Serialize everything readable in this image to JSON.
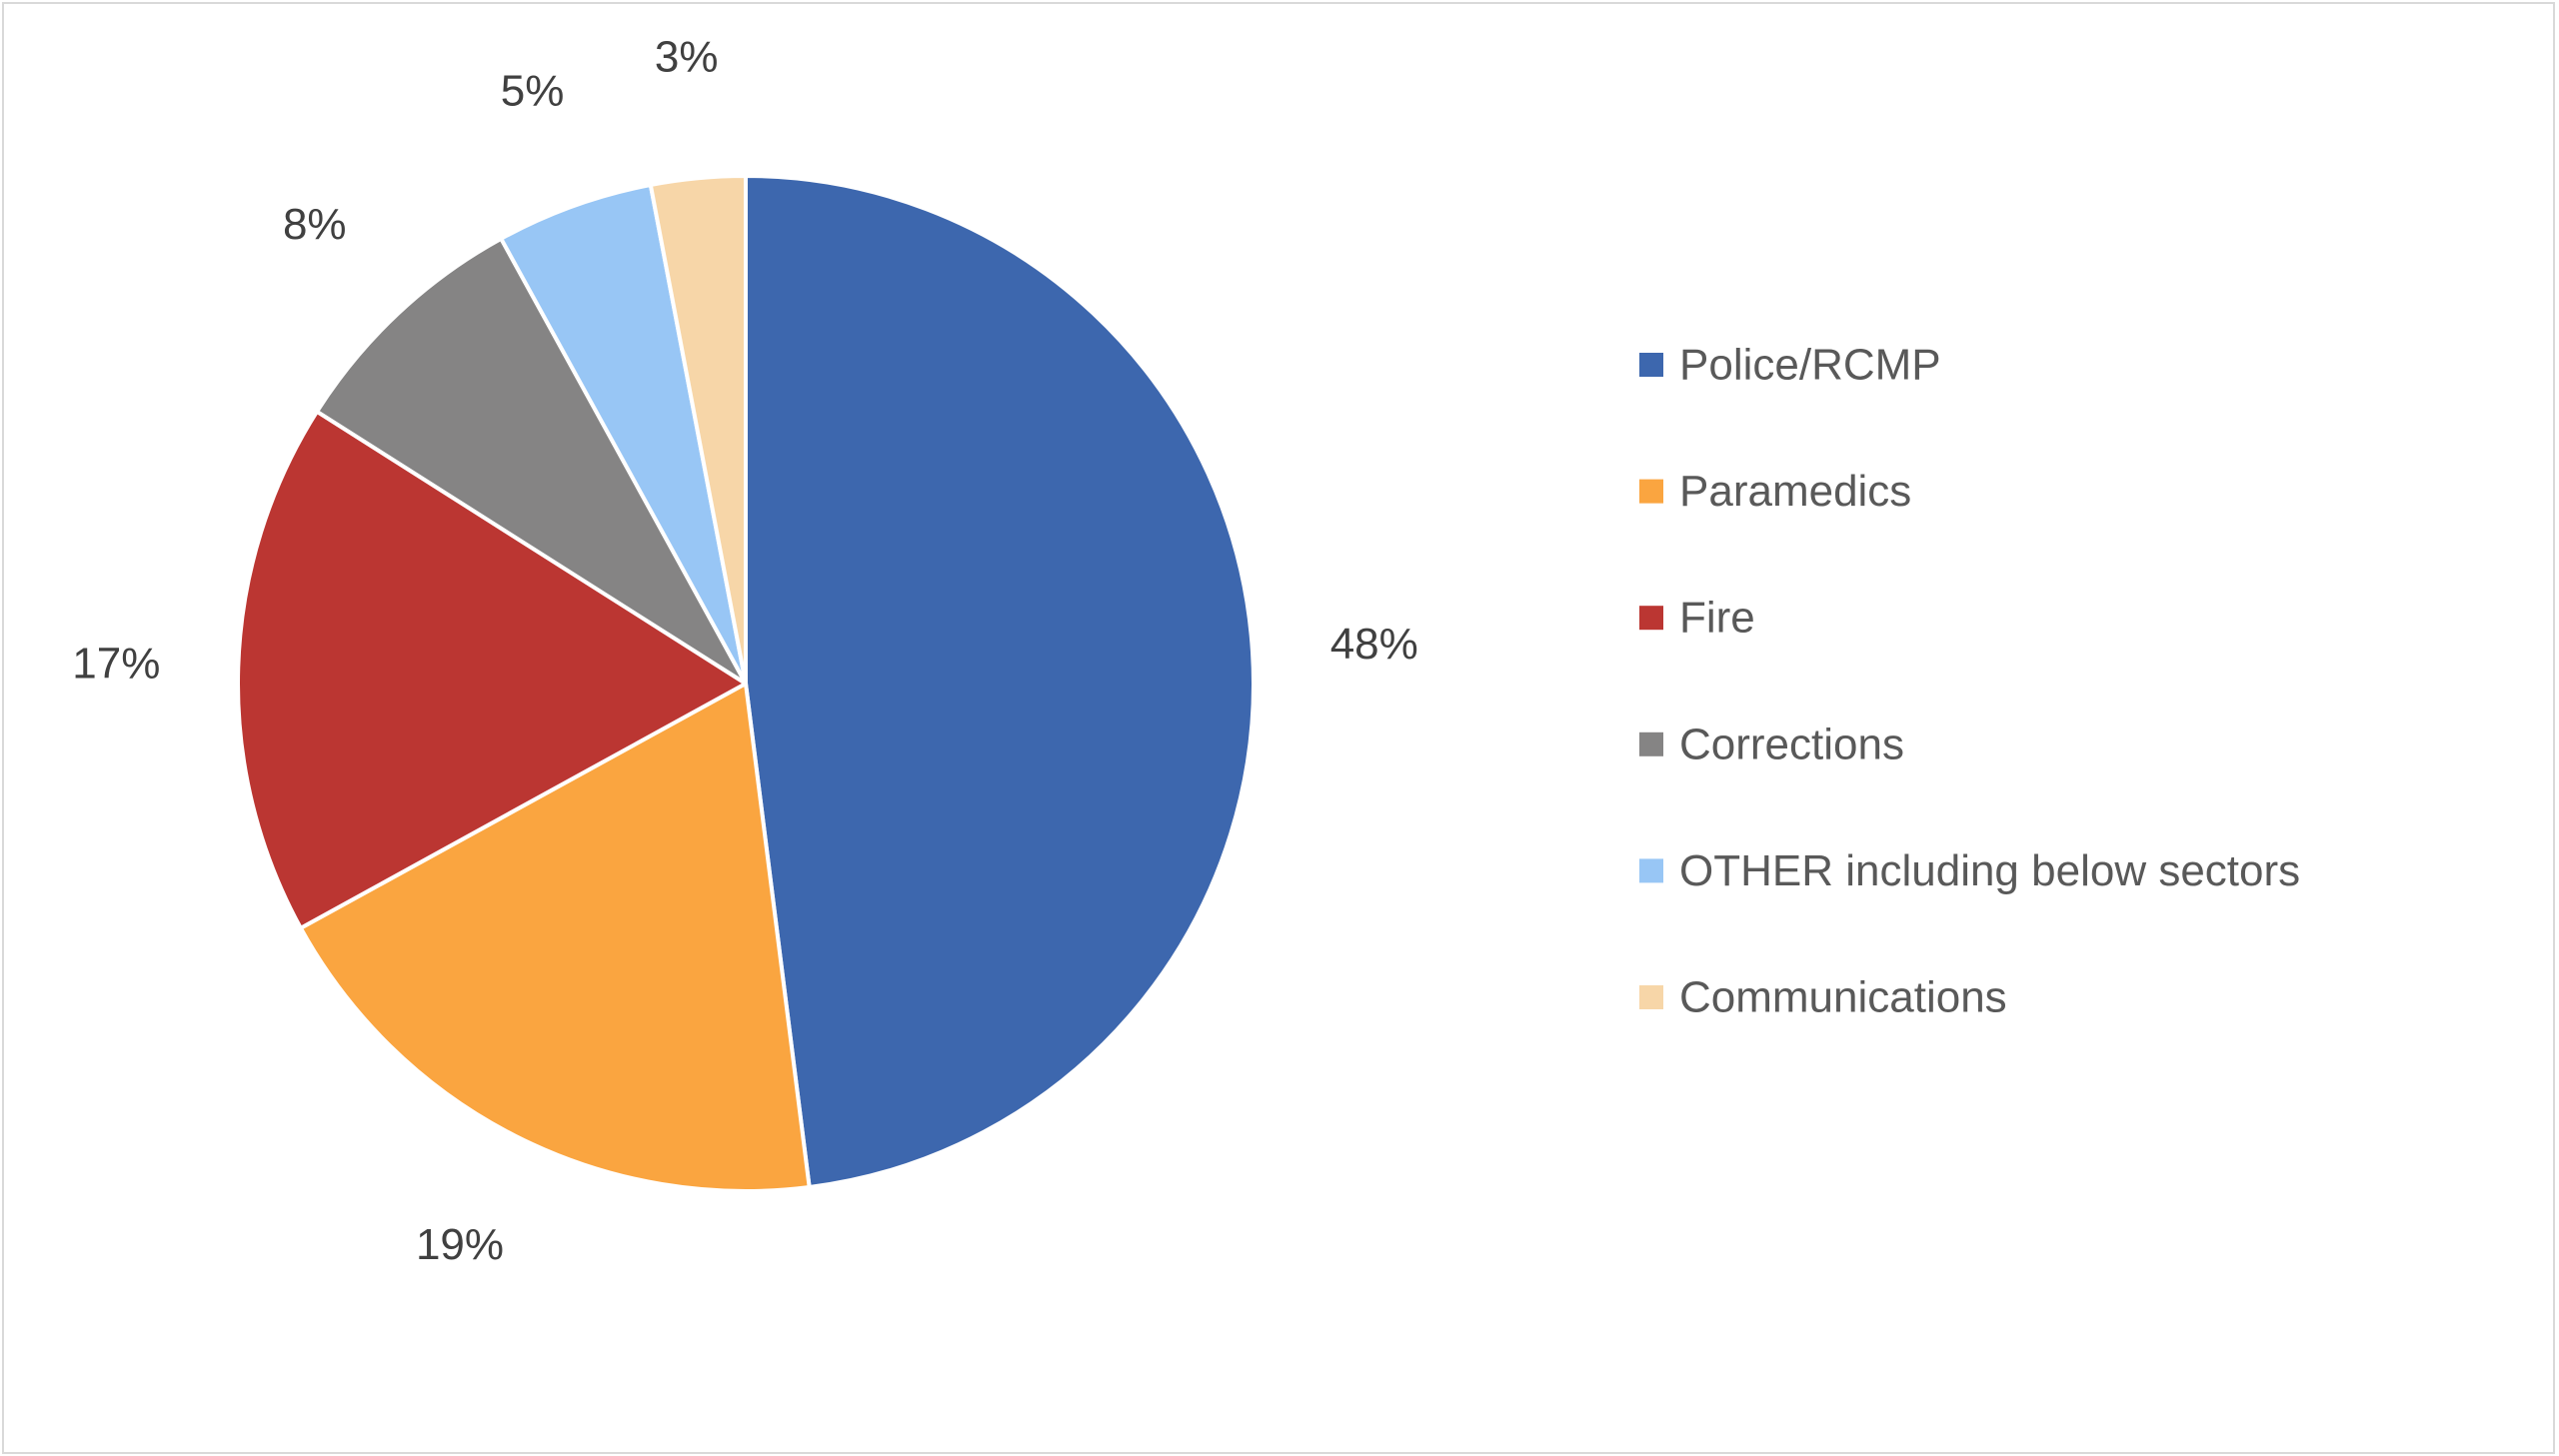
{
  "chart_data": {
    "type": "pie",
    "title": "",
    "legend_position": "right",
    "data_labels": true,
    "slices": [
      {
        "label": "Police/RCMP",
        "value": 48,
        "display": "48%",
        "color": "#3d67ae"
      },
      {
        "label": "Paramedics",
        "value": 19,
        "display": "19%",
        "color": "#faa540"
      },
      {
        "label": "Fire",
        "value": 17,
        "display": "17%",
        "color": "#bb3632"
      },
      {
        "label": "Corrections",
        "value": 8,
        "display": "8%",
        "color": "#858484"
      },
      {
        "label": "OTHER including below sectors",
        "value": 5,
        "display": "5%",
        "color": "#98c6f5"
      },
      {
        "label": "Communications",
        "value": 3,
        "display": "3%",
        "color": "#f7d6a8"
      }
    ]
  }
}
